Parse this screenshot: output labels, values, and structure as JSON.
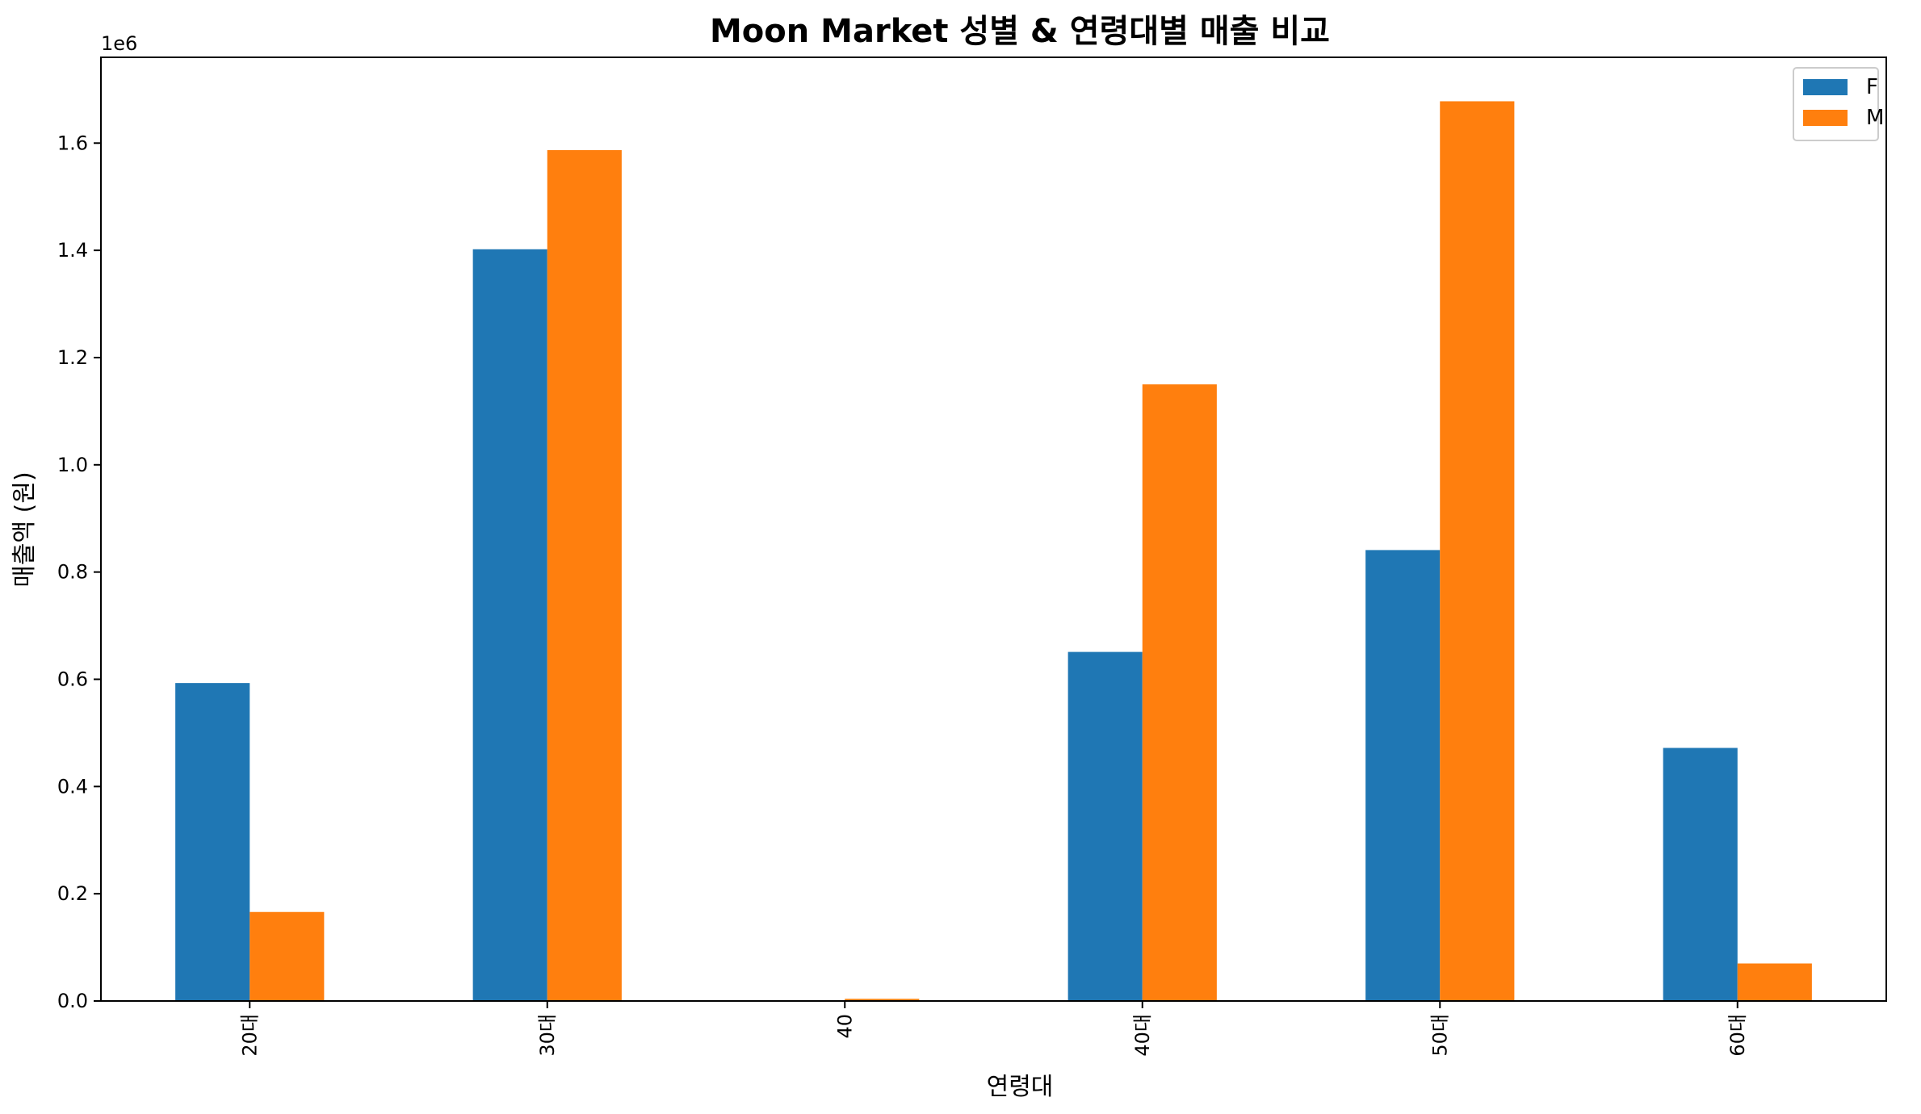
{
  "chart_data": {
    "type": "bar",
    "title": "Moon Market 성별 & 연령대별 매출 비교",
    "xlabel": "연령대",
    "ylabel": "매출액 (원)",
    "y_offset_label": "1e6",
    "y_scale": 1000000,
    "categories": [
      "20대",
      "30대",
      "40",
      "40대",
      "50대",
      "60대"
    ],
    "series": [
      {
        "name": "F",
        "color": "#1f77b4",
        "values": [
          593000,
          1402000,
          0,
          651000,
          841000,
          472000
        ]
      },
      {
        "name": "M",
        "color": "#ff7f0e",
        "values": [
          166000,
          1587000,
          4000,
          1150000,
          1678000,
          70000
        ]
      }
    ],
    "ylim": [
      0,
      1760000
    ],
    "yticks": [
      0,
      200000,
      400000,
      600000,
      800000,
      1000000,
      1200000,
      1400000,
      1600000
    ],
    "ytick_labels": [
      "0.0",
      "0.2",
      "0.4",
      "0.6",
      "0.8",
      "1.0",
      "1.2",
      "1.4",
      "1.6"
    ],
    "legend_position": "top-right",
    "grid": false
  }
}
